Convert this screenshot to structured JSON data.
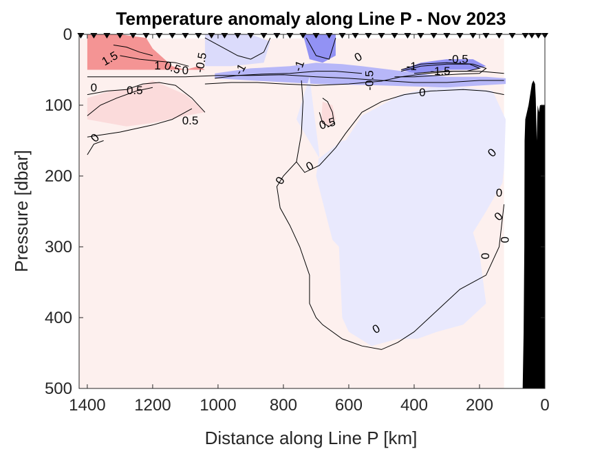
{
  "chart_data": {
    "type": "contour",
    "title": "Temperature anomaly along Line P - Nov 2023",
    "xlabel": "Distance along Line P [km]",
    "ylabel": "Pressure [dbar]",
    "xlim": [
      1425,
      0
    ],
    "x_reversed": true,
    "ylim": [
      0,
      500
    ],
    "y_reversed": true,
    "xticks": [
      1400,
      1200,
      1000,
      800,
      600,
      400,
      200,
      0
    ],
    "yticks": [
      0,
      100,
      200,
      300,
      400,
      500
    ],
    "colormap": {
      "negative": "#6e6ef0",
      "zero": "#ffffff",
      "positive": "#f07070"
    },
    "background_anomaly_color": "#fdf0ee",
    "land_color": "#000000",
    "contour_levels": [
      -1.5,
      -1,
      -0.5,
      0,
      0.5,
      1,
      1.5
    ],
    "stations_km": [
      1420,
      1380,
      1340,
      1300,
      1260,
      1220,
      1180,
      1140,
      1100,
      1060,
      1020,
      980,
      940,
      900,
      860,
      820,
      780,
      740,
      700,
      660,
      620,
      580,
      540,
      500,
      460,
      420,
      380,
      340,
      300,
      260,
      220,
      180,
      140,
      100,
      60,
      40,
      20,
      0
    ],
    "data_extent": {
      "x_min": 0,
      "x_max": 1400,
      "x_last_station_with_data": 125,
      "y_max": 500
    },
    "regions": [
      {
        "name": "warm-surface-west",
        "anomaly": 1.5,
        "points": [
          [
            1400,
            0
          ],
          [
            1300,
            0
          ],
          [
            1220,
            5
          ],
          [
            1200,
            20
          ],
          [
            1140,
            45
          ],
          [
            1100,
            50
          ],
          [
            1060,
            45
          ],
          [
            1040,
            50
          ],
          [
            1150,
            50
          ],
          [
            1300,
            50
          ],
          [
            1400,
            50
          ]
        ]
      },
      {
        "name": "warm-subsurface-west",
        "anomaly": 0.5,
        "points": [
          [
            1400,
            90
          ],
          [
            1330,
            80
          ],
          [
            1250,
            75
          ],
          [
            1200,
            65
          ],
          [
            1150,
            75
          ],
          [
            1100,
            85
          ],
          [
            1060,
            100
          ],
          [
            1040,
            110
          ],
          [
            1100,
            115
          ],
          [
            1200,
            125
          ],
          [
            1280,
            130
          ],
          [
            1340,
            125
          ],
          [
            1400,
            120
          ]
        ]
      },
      {
        "name": "cold-surface-mid",
        "anomaly": -0.5,
        "points": [
          [
            1040,
            0
          ],
          [
            900,
            0
          ],
          [
            840,
            10
          ],
          [
            860,
            40
          ],
          [
            960,
            45
          ],
          [
            1040,
            45
          ]
        ]
      },
      {
        "name": "cold-core-700",
        "anomaly": -1.5,
        "points": [
          [
            740,
            0
          ],
          [
            640,
            0
          ],
          [
            640,
            30
          ],
          [
            680,
            40
          ],
          [
            720,
            35
          ]
        ]
      },
      {
        "name": "cold-lens-east",
        "anomaly": -1.5,
        "points": [
          [
            440,
            50
          ],
          [
            380,
            40
          ],
          [
            300,
            35
          ],
          [
            220,
            35
          ],
          [
            180,
            45
          ],
          [
            220,
            50
          ],
          [
            300,
            50
          ],
          [
            400,
            55
          ]
        ]
      },
      {
        "name": "cold-band-mid",
        "anomaly": -1,
        "points": [
          [
            1010,
            55
          ],
          [
            900,
            48
          ],
          [
            780,
            45
          ],
          [
            700,
            40
          ],
          [
            620,
            42
          ],
          [
            560,
            45
          ],
          [
            470,
            50
          ],
          [
            300,
            60
          ],
          [
            180,
            60
          ],
          [
            120,
            62
          ],
          [
            120,
            70
          ],
          [
            300,
            75
          ],
          [
            500,
            72
          ],
          [
            700,
            70
          ],
          [
            900,
            65
          ],
          [
            1010,
            62
          ]
        ]
      },
      {
        "name": "cold-tongue-deep",
        "anomaly": -0.3,
        "points": [
          [
            720,
            60
          ],
          [
            760,
            120
          ],
          [
            690,
            175
          ],
          [
            620,
            150
          ],
          [
            610,
            150
          ],
          [
            560,
            115
          ],
          [
            500,
            100
          ],
          [
            440,
            85
          ],
          [
            350,
            75
          ],
          [
            240,
            75
          ],
          [
            160,
            80
          ],
          [
            120,
            120
          ],
          [
            125,
            190
          ],
          [
            130,
            210
          ],
          [
            180,
            250
          ],
          [
            220,
            280
          ],
          [
            200,
            310
          ],
          [
            180,
            380
          ],
          [
            250,
            410
          ],
          [
            330,
            420
          ],
          [
            390,
            430
          ],
          [
            450,
            430
          ],
          [
            530,
            440
          ],
          [
            600,
            420
          ],
          [
            620,
            400
          ],
          [
            630,
            300
          ],
          [
            650,
            290
          ],
          [
            700,
            200
          ],
          [
            690,
            170
          ]
        ]
      },
      {
        "name": "warm-spot-650",
        "anomaly": 0.5,
        "points": [
          [
            680,
            95
          ],
          [
            650,
            100
          ],
          [
            640,
            120
          ],
          [
            660,
            130
          ],
          [
            685,
            125
          ]
        ]
      }
    ],
    "contours": [
      {
        "level": 0,
        "points": [
          [
            1400,
            60
          ],
          [
            1200,
            60
          ],
          [
            1100,
            60
          ],
          [
            1000,
            58
          ],
          [
            900,
            58
          ],
          [
            800,
            57
          ],
          [
            700,
            60
          ],
          [
            600,
            62
          ],
          [
            500,
            65
          ],
          [
            400,
            68
          ],
          [
            300,
            68
          ],
          [
            200,
            65
          ],
          [
            125,
            65
          ]
        ]
      },
      {
        "level": 0,
        "points": [
          [
            745,
            65
          ],
          [
            740,
            95
          ],
          [
            745,
            140
          ],
          [
            760,
            180
          ],
          [
            735,
            195
          ],
          [
            690,
            185
          ],
          [
            640,
            160
          ],
          [
            610,
            140
          ],
          [
            560,
            110
          ],
          [
            500,
            95
          ],
          [
            430,
            85
          ],
          [
            350,
            80
          ],
          [
            250,
            78
          ],
          [
            180,
            80
          ],
          [
            125,
            85
          ]
        ]
      },
      {
        "level": 0,
        "points": [
          [
            1400,
            115
          ],
          [
            1360,
            100
          ],
          [
            1310,
            90
          ],
          [
            1250,
            80
          ],
          [
            1200,
            75
          ]
        ]
      },
      {
        "level": 0,
        "points": [
          [
            1400,
            170
          ],
          [
            1380,
            155
          ],
          [
            1350,
            150
          ]
        ]
      },
      {
        "level": 0,
        "points": [
          [
            760,
            180
          ],
          [
            800,
            200
          ],
          [
            820,
            215
          ],
          [
            810,
            245
          ],
          [
            780,
            270
          ],
          [
            750,
            300
          ],
          [
            720,
            340
          ],
          [
            720,
            380
          ],
          [
            700,
            400
          ],
          [
            680,
            410
          ],
          [
            620,
            430
          ],
          [
            560,
            440
          ],
          [
            500,
            445
          ],
          [
            450,
            435
          ],
          [
            400,
            420
          ],
          [
            330,
            390
          ],
          [
            260,
            360
          ],
          [
            180,
            340
          ],
          [
            140,
            300
          ],
          [
            130,
            260
          ],
          [
            125,
            240
          ]
        ]
      },
      {
        "level": 0.5,
        "points": [
          [
            1400,
            85
          ],
          [
            1340,
            80
          ],
          [
            1280,
            78
          ],
          [
            1230,
            70
          ],
          [
            1180,
            68
          ],
          [
            1130,
            72
          ],
          [
            1080,
            90
          ],
          [
            1040,
            110
          ]
        ]
      },
      {
        "level": 0.5,
        "points": [
          [
            1400,
            145
          ],
          [
            1300,
            138
          ],
          [
            1200,
            128
          ],
          [
            1140,
            120
          ],
          [
            1080,
            105
          ]
        ]
      },
      {
        "level": 0.5,
        "points": [
          [
            680,
            90
          ],
          [
            665,
            95
          ],
          [
            650,
            110
          ],
          [
            645,
            125
          ],
          [
            660,
            130
          ],
          [
            680,
            125
          ],
          [
            690,
            110
          ]
        ]
      },
      {
        "level": 1,
        "points": [
          [
            1300,
            30
          ],
          [
            1240,
            35
          ],
          [
            1180,
            38
          ],
          [
            1130,
            40
          ],
          [
            1090,
            45
          ]
        ]
      },
      {
        "level": 1.5,
        "points": [
          [
            1320,
            15
          ],
          [
            1280,
            18
          ],
          [
            1240,
            25
          ],
          [
            1200,
            30
          ]
        ]
      },
      {
        "level": -0.5,
        "points": [
          [
            1040,
            70
          ],
          [
            960,
            68
          ],
          [
            880,
            68
          ],
          [
            800,
            70
          ],
          [
            700,
            72
          ],
          [
            600,
            70
          ],
          [
            500,
            66
          ],
          [
            440,
            60
          ],
          [
            360,
            55
          ],
          [
            280,
            52
          ],
          [
            200,
            52
          ],
          [
            125,
            55
          ]
        ]
      },
      {
        "level": -0.5,
        "points": [
          [
            1040,
            5
          ],
          [
            980,
            20
          ],
          [
            940,
            30
          ],
          [
            900,
            35
          ],
          [
            860,
            25
          ],
          [
            840,
            5
          ]
        ]
      },
      {
        "level": -1,
        "points": [
          [
            1010,
            62
          ],
          [
            940,
            58
          ],
          [
            860,
            56
          ],
          [
            780,
            55
          ],
          [
            700,
            52
          ],
          [
            640,
            52
          ],
          [
            560,
            55
          ]
        ]
      },
      {
        "level": -1,
        "points": [
          [
            460,
            60
          ],
          [
            400,
            60
          ],
          [
            330,
            58
          ],
          [
            260,
            56
          ],
          [
            200,
            55
          ],
          [
            180,
            48
          ],
          [
            220,
            42
          ],
          [
            300,
            40
          ],
          [
            380,
            42
          ],
          [
            440,
            50
          ]
        ]
      },
      {
        "level": -1.5,
        "points": [
          [
            440,
            52
          ],
          [
            380,
            45
          ],
          [
            300,
            42
          ],
          [
            230,
            42
          ],
          [
            200,
            48
          ],
          [
            240,
            52
          ],
          [
            320,
            52
          ],
          [
            400,
            55
          ]
        ]
      },
      {
        "level": -1.5,
        "points": [
          [
            730,
            5
          ],
          [
            700,
            30
          ],
          [
            660,
            35
          ],
          [
            640,
            5
          ]
        ]
      }
    ],
    "contour_labels": [
      {
        "text": "1.5",
        "x": 1330,
        "y": 35,
        "angle": -30
      },
      {
        "text": "1",
        "x": 1185,
        "y": 45,
        "angle": 0
      },
      {
        "text": "0.5",
        "x": 1140,
        "y": 48,
        "angle": 20
      },
      {
        "text": "0",
        "x": 1100,
        "y": 52,
        "angle": 0
      },
      {
        "text": "-0.5",
        "x": 1050,
        "y": 40,
        "angle": -80
      },
      {
        "text": "-1",
        "x": 930,
        "y": 50,
        "angle": -60
      },
      {
        "text": "-1",
        "x": 750,
        "y": 45,
        "angle": -70
      },
      {
        "text": "0",
        "x": 570,
        "y": 33,
        "angle": -30
      },
      {
        "text": "-0.5",
        "x": 535,
        "y": 65,
        "angle": -90
      },
      {
        "text": "-0.5",
        "x": 265,
        "y": 36,
        "angle": 0
      },
      {
        "text": "-1",
        "x": 408,
        "y": 46,
        "angle": 0
      },
      {
        "text": "-1.5",
        "x": 320,
        "y": 53,
        "angle": 0
      },
      {
        "text": "0",
        "x": 375,
        "y": 83,
        "angle": 0
      },
      {
        "text": "0",
        "x": 1380,
        "y": 76,
        "angle": 0
      },
      {
        "text": "0.5",
        "x": 1255,
        "y": 80,
        "angle": 0
      },
      {
        "text": "0.5",
        "x": 1085,
        "y": 123,
        "angle": 0
      },
      {
        "text": "0.5",
        "x": 665,
        "y": 127,
        "angle": -15
      },
      {
        "text": "0",
        "x": 1375,
        "y": 147,
        "angle": -45
      },
      {
        "text": "0",
        "x": 718,
        "y": 187,
        "angle": -30
      },
      {
        "text": "0",
        "x": 808,
        "y": 207,
        "angle": -60
      },
      {
        "text": "0",
        "x": 160,
        "y": 168,
        "angle": -45
      },
      {
        "text": "0",
        "x": 140,
        "y": 225,
        "angle": 0
      },
      {
        "text": "0",
        "x": 140,
        "y": 258,
        "angle": -45
      },
      {
        "text": "0",
        "x": 120,
        "y": 290,
        "angle": -90
      },
      {
        "text": "0",
        "x": 180,
        "y": 313,
        "angle": -90
      },
      {
        "text": "0",
        "x": 515,
        "y": 417,
        "angle": -30
      }
    ],
    "bathymetry": [
      [
        125,
        500
      ],
      [
        100,
        500
      ],
      [
        68,
        500
      ],
      [
        65,
        420
      ],
      [
        63,
        300
      ],
      [
        62,
        150
      ],
      [
        60,
        120
      ],
      [
        50,
        100
      ],
      [
        40,
        70
      ],
      [
        35,
        65
      ],
      [
        30,
        70
      ],
      [
        28,
        90
      ],
      [
        25,
        150
      ],
      [
        22,
        100
      ],
      [
        18,
        110
      ],
      [
        15,
        100
      ],
      [
        0,
        100
      ],
      [
        0,
        500
      ]
    ]
  }
}
